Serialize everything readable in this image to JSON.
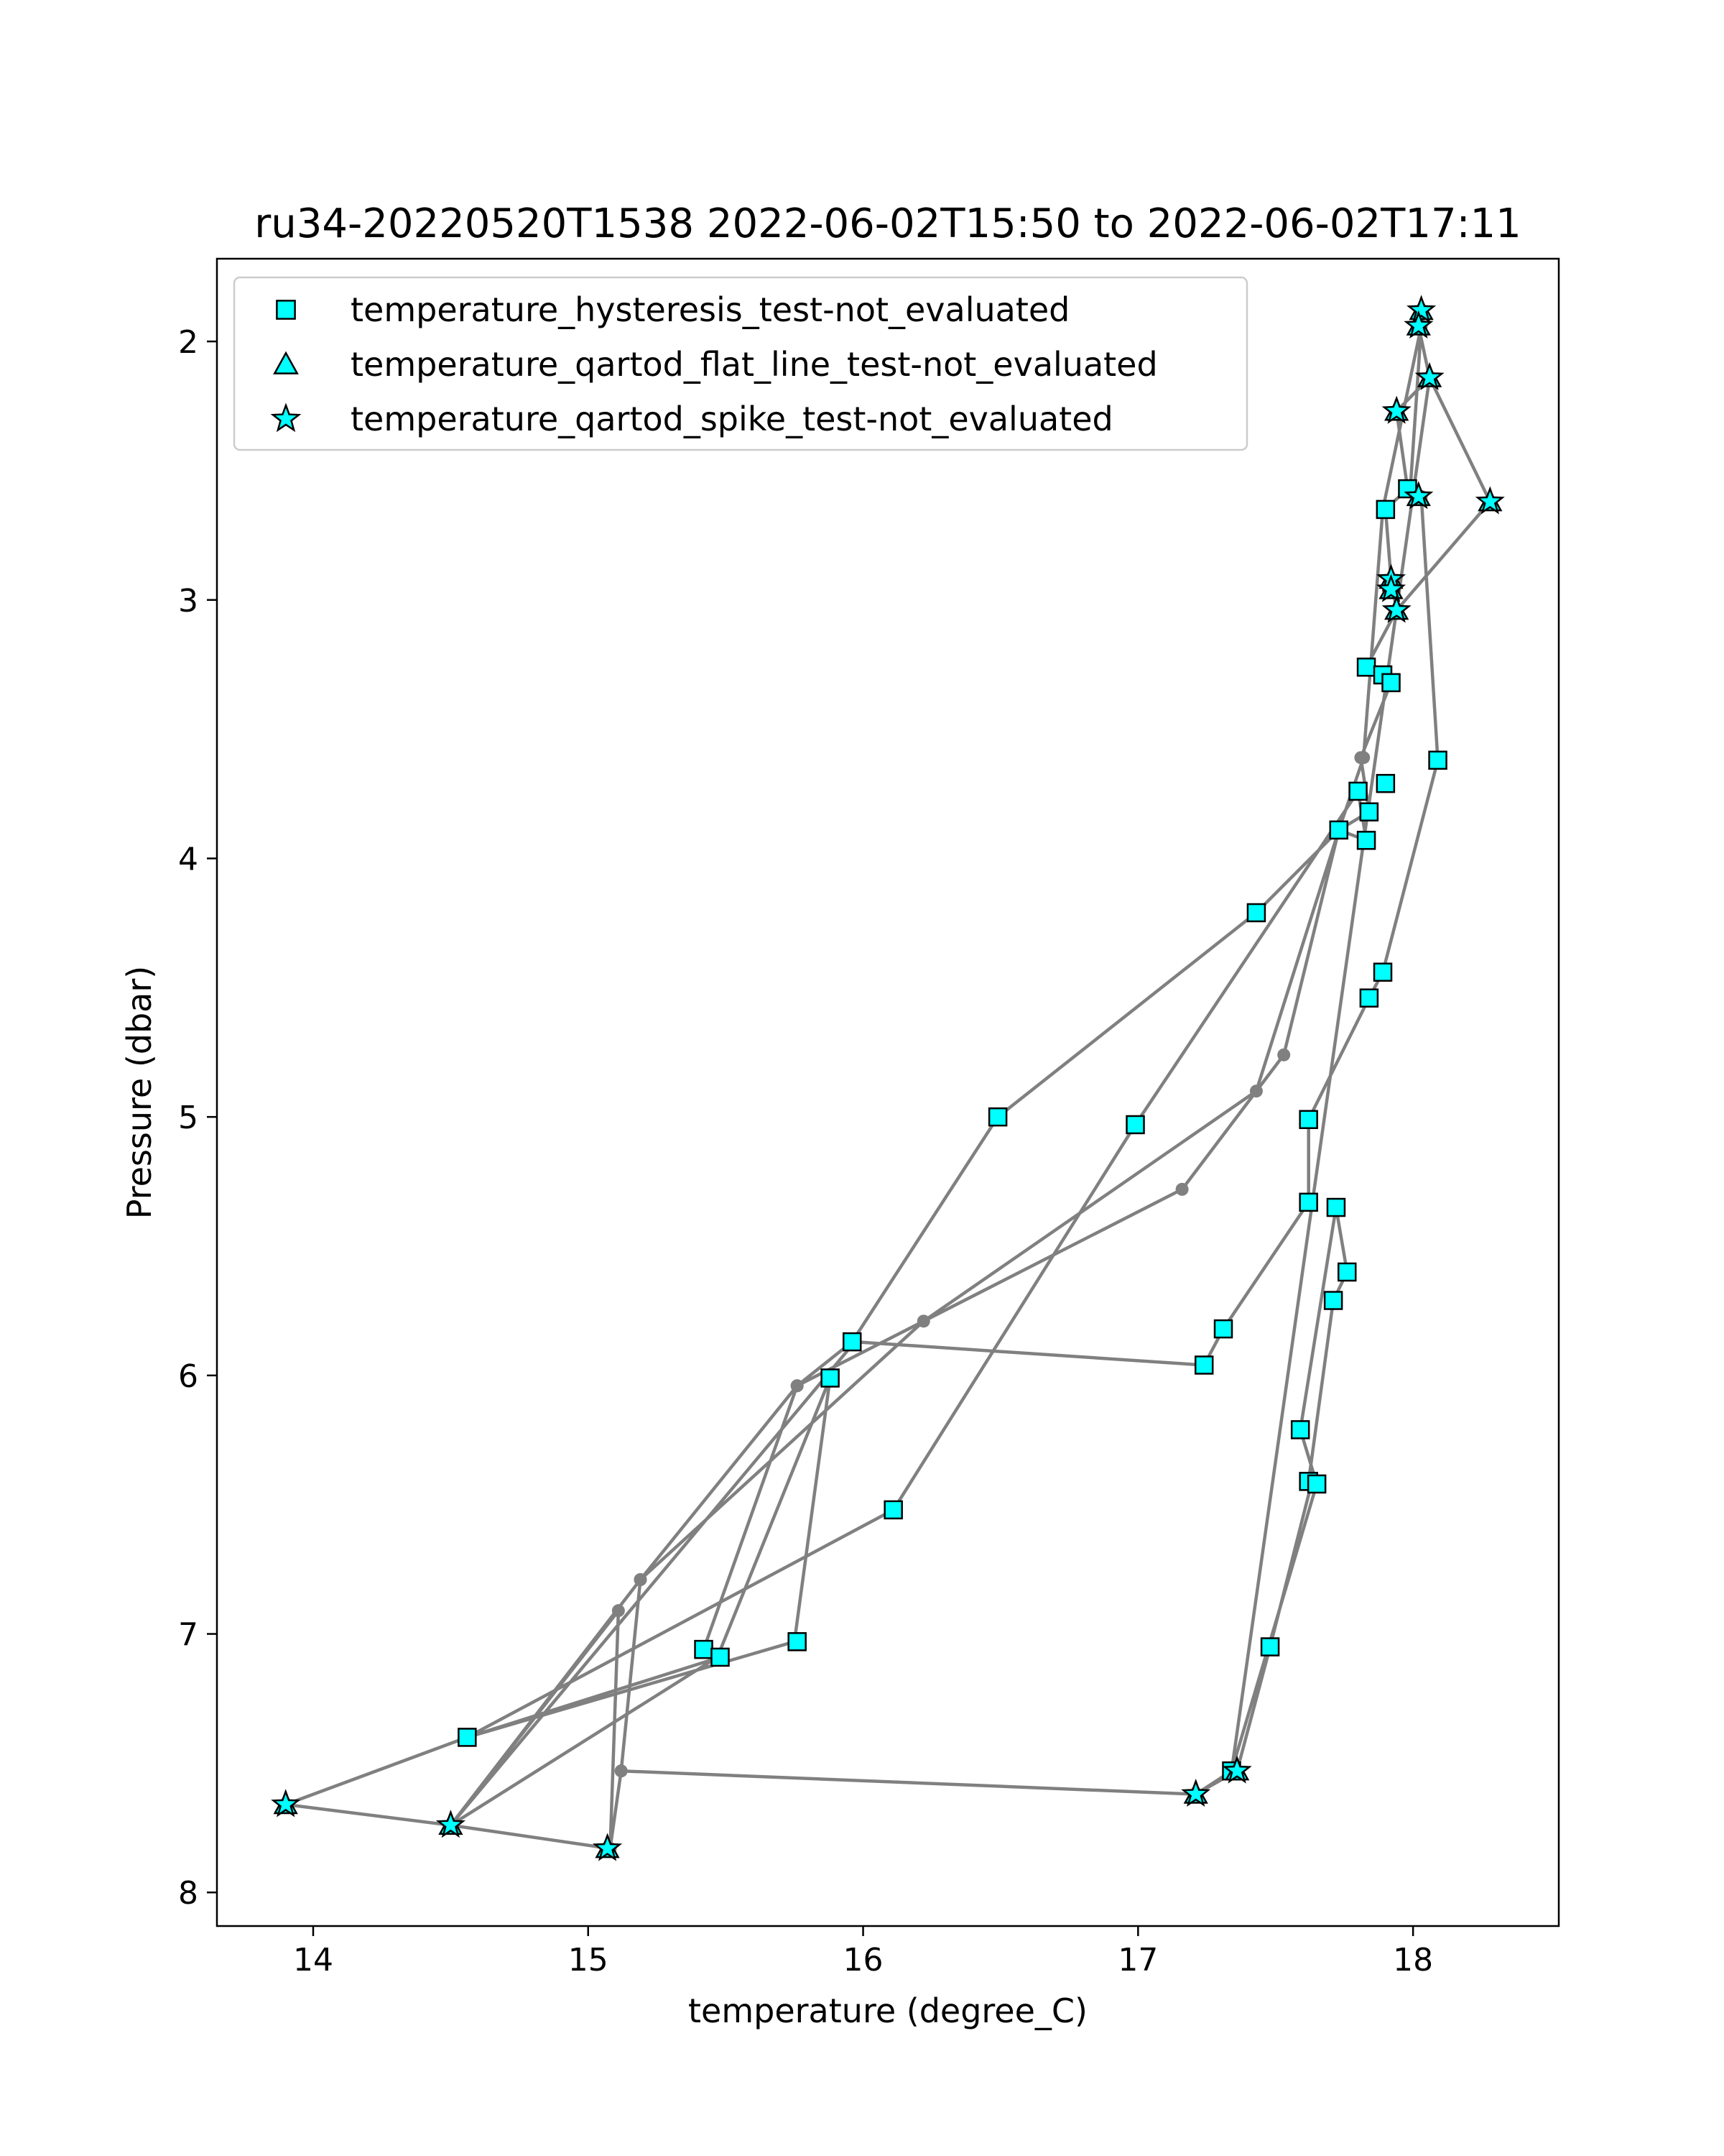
{
  "chart_data": {
    "type": "scatter",
    "title": "ru34-20220520T1538 2022-06-02T15:50 to 2022-06-02T17:11",
    "xlabel": "temperature (degree_C)",
    "ylabel": "Pressure (dbar)",
    "xlim": [
      13.65,
      18.53
    ],
    "ylim": [
      8.13,
      1.68
    ],
    "y_inverted": true,
    "xticks": [
      14,
      15,
      16,
      17,
      18
    ],
    "yticks": [
      2,
      3,
      4,
      5,
      6,
      7,
      8
    ],
    "grid": false,
    "legend_position": "upper-left",
    "colors": {
      "line": "#808080",
      "marker_fill": "#00ffff",
      "marker_edge": "#000000",
      "frame": "#000000"
    },
    "profile_line": {
      "x": [
        18.03,
        18.02,
        18.06,
        17.94,
        17.98,
        17.9,
        17.92,
        17.94,
        17.83,
        17.89,
        17.92,
        17.81,
        17.84,
        17.73,
        17.43,
        16.49,
        15.96,
        15.76,
        15.42,
        15.48,
        14.56,
        13.9,
        14.56,
        15.75,
        15.88,
        15.47,
        14.5,
        15.11,
        15.08,
        15.12,
        15.19,
        16.22,
        17.43,
        17.73,
        17.83,
        17.8,
        16.99,
        16.11,
        14.56,
        13.9,
        14.5,
        15.19,
        15.76,
        17.16,
        17.53,
        17.73,
        17.82,
        17.89,
        18.03,
        17.99,
        18.03,
        18.09,
        17.89,
        17.84,
        17.62,
        17.62,
        17.31,
        17.24,
        15.97,
        14.5,
        15.08,
        15.12,
        17.21,
        17.36,
        17.48,
        17.63,
        17.62,
        17.71,
        17.76,
        17.72,
        17.59,
        17.65,
        17.34,
        17.21,
        17.34,
        18.06,
        18.28,
        17.94
      ],
      "y": [
        1.88,
        1.94,
        2.14,
        2.27,
        2.57,
        2.65,
        2.92,
        3.04,
        3.26,
        3.29,
        3.32,
        3.61,
        3.82,
        3.89,
        4.21,
        5.0,
        5.87,
        6.04,
        7.06,
        7.09,
        7.4,
        7.66,
        7.4,
        7.03,
        6.01,
        7.09,
        7.74,
        6.91,
        7.83,
        7.53,
        6.79,
        5.79,
        4.9,
        3.89,
        3.93,
        3.74,
        5.03,
        6.52,
        7.4,
        7.66,
        7.74,
        6.79,
        6.04,
        5.28,
        4.76,
        3.89,
        3.61,
        2.65,
        1.94,
        2.57,
        2.6,
        3.62,
        4.44,
        4.54,
        5.01,
        5.33,
        5.82,
        5.96,
        5.87,
        7.74,
        7.83,
        7.53,
        7.62,
        7.53,
        7.05,
        6.42,
        6.41,
        5.71,
        5.6,
        5.35,
        6.21,
        6.42,
        7.53,
        7.62,
        7.53,
        2.14,
        2.62,
        3.04
      ]
    },
    "series": [
      {
        "name": "temperature_hysteresis_test-not_evaluated",
        "marker": "square",
        "x": [
          17.98,
          17.9,
          17.83,
          17.89,
          17.92,
          18.09,
          17.9,
          17.8,
          17.84,
          17.73,
          17.83,
          17.43,
          17.89,
          17.84,
          16.49,
          16.99,
          17.62,
          17.62,
          17.72,
          17.76,
          17.71,
          17.31,
          15.96,
          17.24,
          15.88,
          17.59,
          17.62,
          17.65,
          16.11,
          15.76,
          15.42,
          15.48,
          17.48,
          14.56,
          17.34
        ],
        "y": [
          2.57,
          2.65,
          3.26,
          3.29,
          3.32,
          3.62,
          3.71,
          3.74,
          3.82,
          3.89,
          3.93,
          4.21,
          4.44,
          4.54,
          5.0,
          5.03,
          5.01,
          5.33,
          5.35,
          5.6,
          5.71,
          5.82,
          5.87,
          5.96,
          6.01,
          6.21,
          6.41,
          6.42,
          6.52,
          7.03,
          7.06,
          7.09,
          7.05,
          7.4,
          7.53
        ]
      },
      {
        "name": "temperature_qartod_flat_line_test-not_evaluated",
        "marker": "triangle",
        "x": [
          18.03,
          18.02,
          18.06,
          17.94,
          18.02,
          18.28,
          17.92,
          17.92,
          17.94,
          13.9,
          14.5,
          15.07,
          17.21,
          17.36
        ],
        "y": [
          1.88,
          1.94,
          2.14,
          2.27,
          2.6,
          2.62,
          2.92,
          2.96,
          3.04,
          7.66,
          7.74,
          7.83,
          7.62,
          7.53
        ]
      },
      {
        "name": "temperature_qartod_spike_test-not_evaluated",
        "marker": "star",
        "x": [
          18.03,
          18.02,
          18.06,
          17.94,
          18.02,
          18.28,
          17.92,
          17.92,
          17.94,
          13.9,
          14.5,
          15.07,
          17.21,
          17.36
        ],
        "y": [
          1.88,
          1.94,
          2.14,
          2.27,
          2.6,
          2.62,
          2.92,
          2.96,
          3.04,
          7.66,
          7.74,
          7.83,
          7.62,
          7.53
        ]
      }
    ]
  }
}
